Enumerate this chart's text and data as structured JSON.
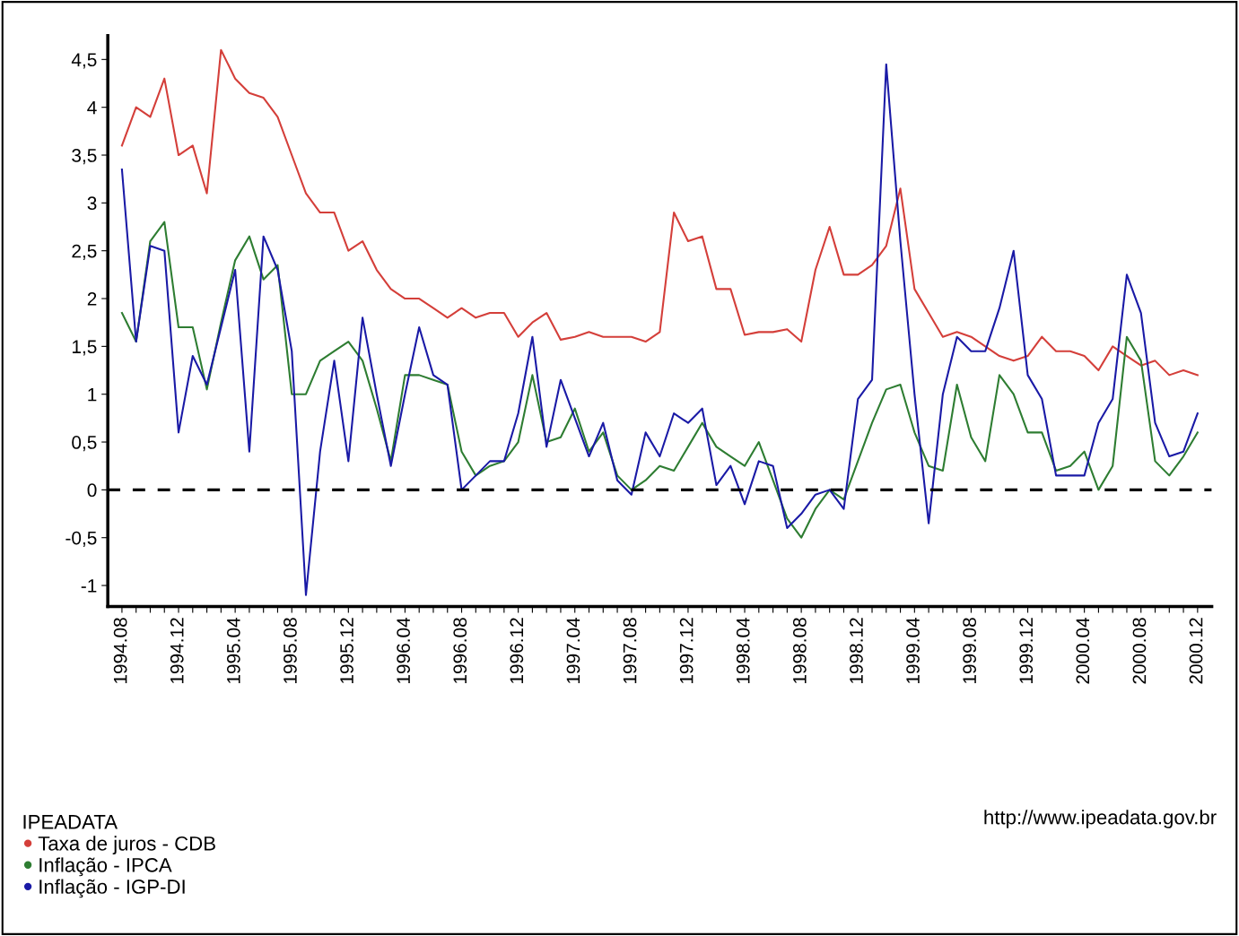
{
  "chart_data": {
    "type": "line",
    "categories": [
      "1994.08",
      null,
      null,
      null,
      "1994.12",
      null,
      null,
      null,
      "1995.04",
      null,
      null,
      null,
      "1995.08",
      null,
      null,
      null,
      "1995.12",
      null,
      null,
      null,
      "1996.04",
      null,
      null,
      null,
      "1996.08",
      null,
      null,
      null,
      "1996.12",
      null,
      null,
      null,
      "1997.04",
      null,
      null,
      null,
      "1997.08",
      null,
      null,
      null,
      "1997.12",
      null,
      null,
      null,
      "1998.04",
      null,
      null,
      null,
      "1998.08",
      null,
      null,
      null,
      "1998.12",
      null,
      null,
      null,
      "1999.04",
      null,
      null,
      null,
      "1999.08",
      null,
      null,
      null,
      "1999.12",
      null,
      null,
      null,
      "2000.04",
      null,
      null,
      null,
      "2000.08",
      null,
      null,
      null,
      "2000.12"
    ],
    "series": [
      {
        "name": "Taxa de juros - CDB",
        "color": "#d43f3a",
        "values": [
          3.6,
          4.0,
          3.9,
          4.3,
          3.5,
          3.6,
          3.1,
          4.6,
          4.3,
          4.15,
          4.1,
          3.9,
          3.5,
          3.1,
          2.9,
          2.9,
          2.5,
          2.6,
          2.3,
          2.1,
          2.0,
          2.0,
          1.9,
          1.8,
          1.9,
          1.8,
          1.85,
          1.85,
          1.6,
          1.75,
          1.85,
          1.57,
          1.6,
          1.65,
          1.6,
          1.6,
          1.6,
          1.55,
          1.65,
          2.9,
          2.6,
          2.65,
          2.1,
          2.1,
          1.62,
          1.65,
          1.65,
          1.68,
          1.55,
          2.3,
          2.75,
          2.25,
          2.25,
          2.35,
          2.55,
          3.15,
          2.1,
          1.85,
          1.6,
          1.65,
          1.6,
          1.5,
          1.4,
          1.35,
          1.4,
          1.6,
          1.45,
          1.45,
          1.4,
          1.25,
          1.5,
          1.4,
          1.3,
          1.35,
          1.2,
          1.25,
          1.2
        ]
      },
      {
        "name": "Inflação - IPCA",
        "color": "#2e7d32",
        "values": [
          1.85,
          1.55,
          2.6,
          2.8,
          1.7,
          1.7,
          1.05,
          1.75,
          2.4,
          2.65,
          2.2,
          2.35,
          1.0,
          1.0,
          1.35,
          1.45,
          1.55,
          1.35,
          0.85,
          0.3,
          1.2,
          1.2,
          1.15,
          1.1,
          0.4,
          0.15,
          0.25,
          0.3,
          0.5,
          1.2,
          0.5,
          0.55,
          0.85,
          0.4,
          0.6,
          0.15,
          0.0,
          0.1,
          0.25,
          0.2,
          0.45,
          0.7,
          0.45,
          0.35,
          0.25,
          0.5,
          0.1,
          -0.3,
          -0.5,
          -0.2,
          0.0,
          -0.1,
          0.3,
          0.7,
          1.05,
          1.1,
          0.6,
          0.25,
          0.2,
          1.1,
          0.55,
          0.3,
          1.2,
          1.0,
          0.6,
          0.6,
          0.2,
          0.25,
          0.4,
          0.0,
          0.25,
          1.6,
          1.35,
          0.3,
          0.15,
          0.35,
          0.6
        ]
      },
      {
        "name": "Inflação - IGP-DI",
        "color": "#1a1aa6",
        "values": [
          3.35,
          1.55,
          2.55,
          2.5,
          0.6,
          1.4,
          1.1,
          1.7,
          2.3,
          0.4,
          2.65,
          2.3,
          1.45,
          -1.1,
          0.4,
          1.35,
          0.3,
          1.8,
          1.0,
          0.25,
          1.0,
          1.7,
          1.2,
          1.1,
          0.0,
          0.15,
          0.3,
          0.3,
          0.8,
          1.6,
          0.45,
          1.15,
          0.75,
          0.35,
          0.7,
          0.1,
          -0.05,
          0.6,
          0.35,
          0.8,
          0.7,
          0.85,
          0.05,
          0.25,
          -0.15,
          0.3,
          0.25,
          -0.4,
          -0.25,
          -0.05,
          0.0,
          -0.2,
          0.95,
          1.15,
          4.45,
          2.6,
          1.0,
          -0.35,
          1.0,
          1.6,
          1.45,
          1.45,
          1.9,
          2.5,
          1.2,
          0.95,
          0.15,
          0.15,
          0.15,
          0.7,
          0.95,
          2.25,
          1.85,
          0.7,
          0.35,
          0.4,
          0.8
        ]
      }
    ],
    "ylim": [
      -1.22,
      4.75
    ],
    "yticks": [
      {
        "value": -1,
        "label": "-1"
      },
      {
        "value": -0.5,
        "label": "-0,5"
      },
      0,
      {
        "value": 0.5,
        "label": "0,5"
      },
      1,
      {
        "value": 1.5,
        "label": "1,5"
      },
      2,
      {
        "value": 2.5,
        "label": "2,5"
      },
      3,
      {
        "value": 3.5,
        "label": "3,5"
      },
      4,
      {
        "value": 4.5,
        "label": "4,5"
      }
    ],
    "ref_lines": [
      {
        "axis": "y",
        "value": 0,
        "color": "#000000",
        "line_style": "dashed"
      }
    ],
    "legend": "bottom left",
    "legend_title": "IPEADATA",
    "grid": false,
    "marker": "none",
    "line_style": "solid",
    "annotations": [
      "http://www.ipeadata.gov.br"
    ]
  }
}
